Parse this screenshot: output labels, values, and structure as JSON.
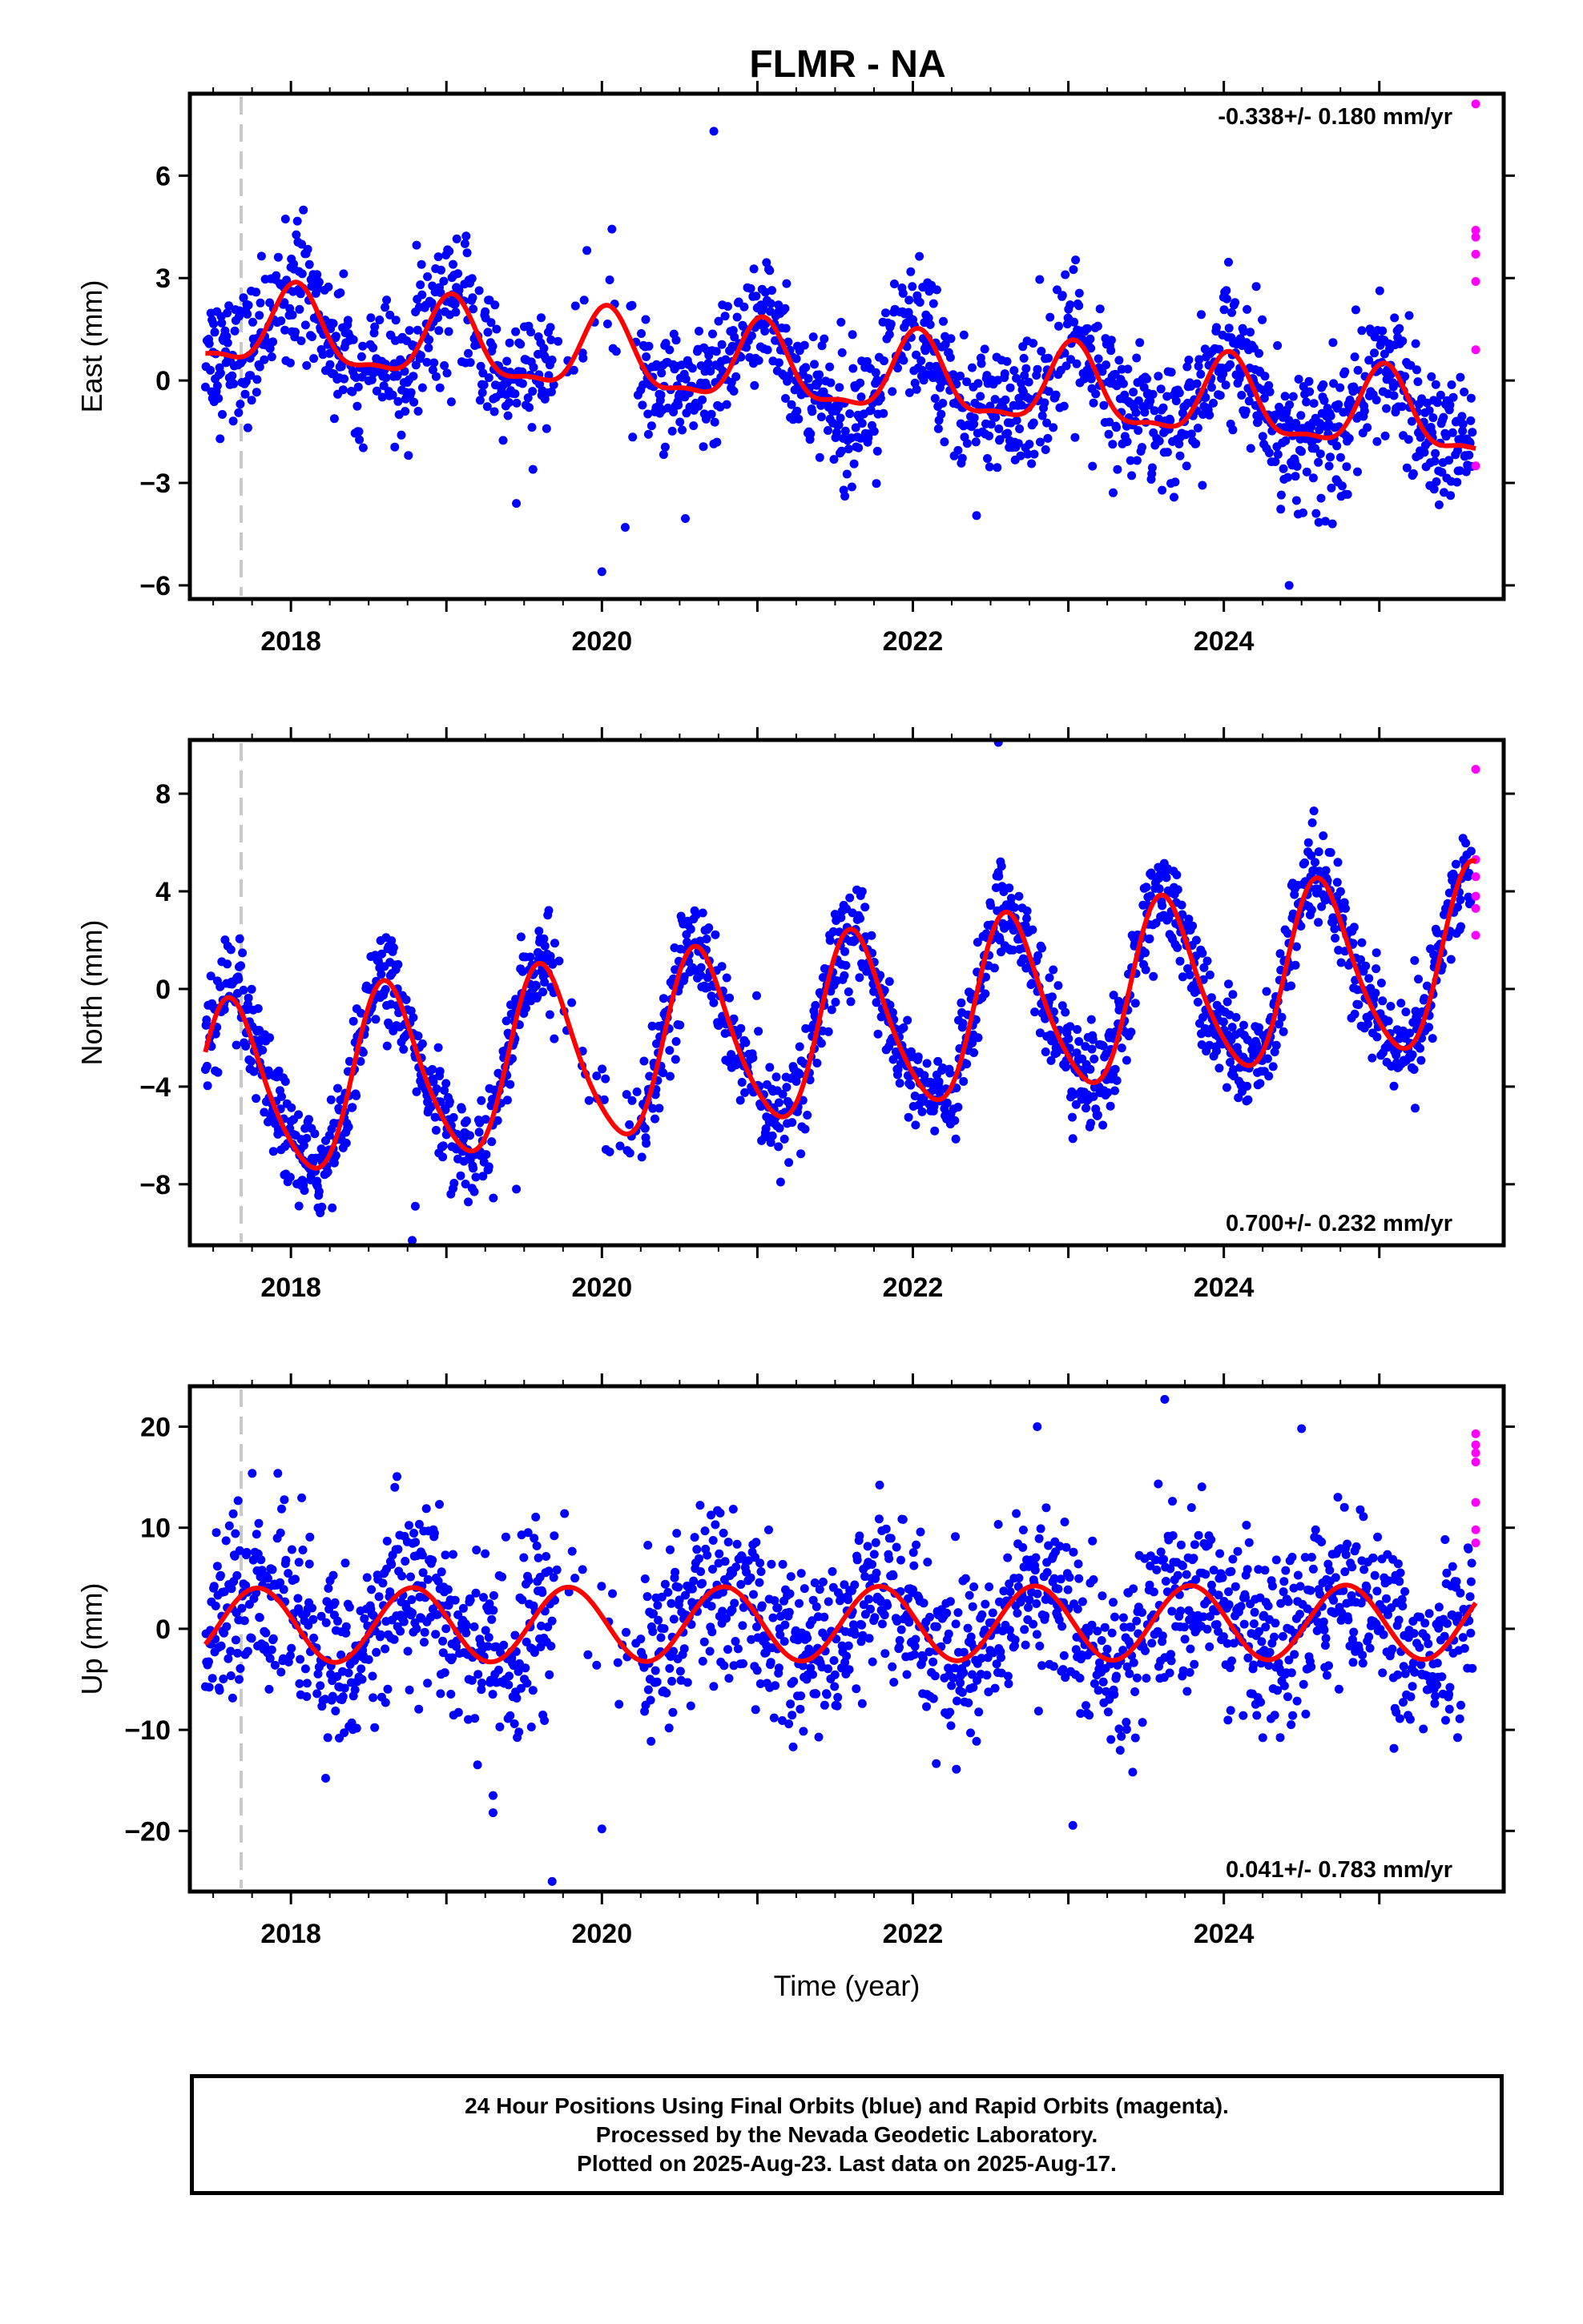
{
  "title": "FLMR - NA",
  "colors": {
    "final_points": "#0000ff",
    "rapid_points": "#ff00ff",
    "model_curve": "#ff0000",
    "reference_line": "#c8c8c8",
    "frame": "#000000"
  },
  "chart_data": [
    {
      "type": "scatter",
      "component": "east",
      "ylabel": "East (mm)",
      "xlabel": "",
      "xlim": [
        2017.35,
        2025.8
      ],
      "ylim": [
        -6.4,
        8.4
      ],
      "yticks": [
        -6,
        -3,
        0,
        3,
        6
      ],
      "ytick_labels": [
        "−6",
        "−3",
        "0",
        "3",
        "6"
      ],
      "xticks": [
        2018,
        2020,
        2022,
        2024
      ],
      "xtick_labels": [
        "2018",
        "2020",
        "2022",
        "2024"
      ],
      "rate_text": "-0.338+/- 0.180 mm/yr",
      "rate_position": "top-right",
      "reference_epoch": 2017.68,
      "trend": {
        "intercept_2021_5": 0.2,
        "rate": -0.338,
        "annual": [
          0.25,
          1.1
        ],
        "semiannual": [
          0.15,
          0.35
        ]
      },
      "final_orbit_points_summary": {
        "x_range": [
          2017.45,
          2025.6
        ],
        "scatter_std": 0.95,
        "outliers": [
          [
            2020.72,
            7.3
          ],
          [
            2020.0,
            -5.6
          ],
          [
            2020.15,
            -4.3
          ],
          [
            2024.42,
            -6.0
          ],
          [
            2019.45,
            -3.6
          ]
        ]
      },
      "rapid_orbit_points": [
        [
          2025.62,
          8.1
        ],
        [
          2025.62,
          4.4
        ],
        [
          2025.62,
          4.2
        ],
        [
          2025.62,
          3.7
        ],
        [
          2025.62,
          2.9
        ],
        [
          2025.62,
          0.9
        ],
        [
          2025.62,
          -2.5
        ]
      ]
    },
    {
      "type": "scatter",
      "component": "north",
      "ylabel": "North (mm)",
      "xlabel": "",
      "xlim": [
        2017.35,
        2025.8
      ],
      "ylim": [
        -10.5,
        10.2
      ],
      "yticks": [
        -8,
        -4,
        0,
        4,
        8
      ],
      "ytick_labels": [
        "−8",
        "−4",
        "0",
        "4",
        "8"
      ],
      "xticks": [
        2018,
        2020,
        2022,
        2024
      ],
      "xtick_labels": [
        "2018",
        "2020",
        "2022",
        "2024"
      ],
      "rate_text": "0.700+/- 0.232 mm/yr",
      "rate_position": "bottom-right",
      "reference_epoch": 2017.68,
      "trend": {
        "intercept_2021_5": -1.6,
        "rate": 0.7,
        "annual": [
          -2.5,
          -2.6
        ],
        "semiannual": [
          0.3,
          0.4
        ]
      },
      "final_orbit_points_summary": {
        "x_range": [
          2017.45,
          2025.6
        ],
        "scatter_std": 1.0,
        "outliers": [
          [
            2022.55,
            10.1
          ],
          [
            2018.78,
            -10.3
          ],
          [
            2019.45,
            -8.2
          ],
          [
            2018.8,
            -8.9
          ],
          [
            2017.98,
            -7.9
          ]
        ]
      },
      "rapid_orbit_points": [
        [
          2025.62,
          9.0
        ],
        [
          2025.62,
          5.3
        ],
        [
          2025.62,
          4.6
        ],
        [
          2025.62,
          3.8
        ],
        [
          2025.62,
          3.3
        ],
        [
          2025.62,
          2.2
        ]
      ]
    },
    {
      "type": "scatter",
      "component": "up",
      "ylabel": "Up (mm)",
      "xlabel": "Time (year)",
      "xlim": [
        2017.35,
        2025.8
      ],
      "ylim": [
        -26.0,
        24.0
      ],
      "yticks": [
        -20,
        -10,
        0,
        10,
        20
      ],
      "ytick_labels": [
        "−20",
        "−10",
        "0",
        "10",
        "20"
      ],
      "xticks": [
        2018,
        2020,
        2022,
        2024
      ],
      "xtick_labels": [
        "2018",
        "2020",
        "2022",
        "2024"
      ],
      "rate_text": "0.041+/- 0.783 mm/yr",
      "rate_position": "bottom-right",
      "reference_epoch": 2017.68,
      "trend": {
        "intercept_2021_5": 0.5,
        "rate": 0.041,
        "annual": [
          -3.6,
          0.8
        ],
        "semiannual": [
          0.0,
          0.0
        ]
      },
      "final_orbit_points_summary": {
        "x_range": [
          2017.45,
          2025.6
        ],
        "scatter_std": 4.2,
        "outliers": [
          [
            2023.62,
            22.7
          ],
          [
            2019.68,
            -25.0
          ],
          [
            2020.0,
            -19.8
          ],
          [
            2019.3,
            -18.2
          ],
          [
            2019.3,
            -16.5
          ],
          [
            2022.8,
            20.0
          ],
          [
            2024.5,
            19.8
          ]
        ]
      },
      "rapid_orbit_points": [
        [
          2025.62,
          19.3
        ],
        [
          2025.62,
          18.2
        ],
        [
          2025.62,
          17.4
        ],
        [
          2025.62,
          16.5
        ],
        [
          2025.62,
          12.5
        ],
        [
          2025.62,
          9.8
        ],
        [
          2025.62,
          8.5
        ]
      ]
    }
  ],
  "footer": {
    "line1": "24 Hour Positions Using Final Orbits (blue) and Rapid Orbits (magenta).",
    "line2": "Processed by the Nevada Geodetic Laboratory.",
    "line3": "Plotted on 2025-Aug-23. Last data on 2025-Aug-17."
  }
}
